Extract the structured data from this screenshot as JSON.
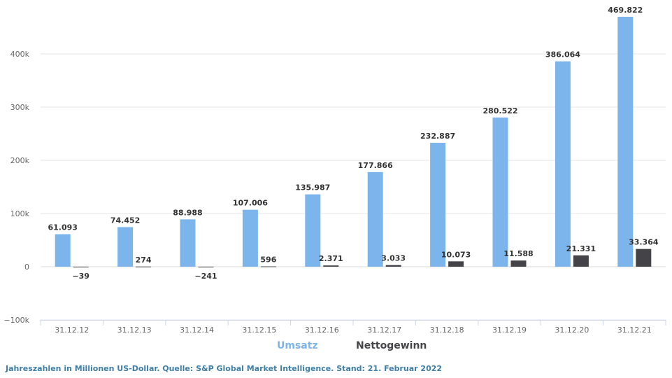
{
  "chart_data": {
    "type": "bar",
    "categories": [
      "31.12.12",
      "31.12.13",
      "31.12.14",
      "31.12.15",
      "31.12.16",
      "31.12.17",
      "31.12.18",
      "31.12.19",
      "31.12.20",
      "31.12.21"
    ],
    "series": [
      {
        "name": "Umsatz",
        "color": "#7cb5ec",
        "values": [
          61093,
          74452,
          88988,
          107006,
          135987,
          177866,
          232887,
          280522,
          386064,
          469822
        ],
        "labels": [
          "61.093",
          "74.452",
          "88.988",
          "107.006",
          "135.987",
          "177.866",
          "232.887",
          "280.522",
          "386.064",
          "469.822"
        ]
      },
      {
        "name": "Nettogewinn",
        "color": "#434348",
        "values": [
          -39,
          274,
          -241,
          596,
          2371,
          3033,
          10073,
          11588,
          21331,
          33364
        ],
        "labels": [
          "−39",
          "274",
          "−241",
          "596",
          "2.371",
          "3.033",
          "10.073",
          "11.588",
          "21.331",
          "33.364"
        ]
      }
    ],
    "ylim": [
      -100000,
      500000
    ],
    "yticks": [
      -100000,
      0,
      100000,
      200000,
      300000,
      400000
    ],
    "ytick_labels": [
      "−100k",
      "0",
      "100k",
      "200k",
      "300k",
      "400k"
    ],
    "grid": true,
    "legend": "bottom-center"
  },
  "footnote": "Jahreszahlen in Millionen US-Dollar. Quelle:  S&P Global Market Intelligence. Stand: 21. Februar 2022"
}
